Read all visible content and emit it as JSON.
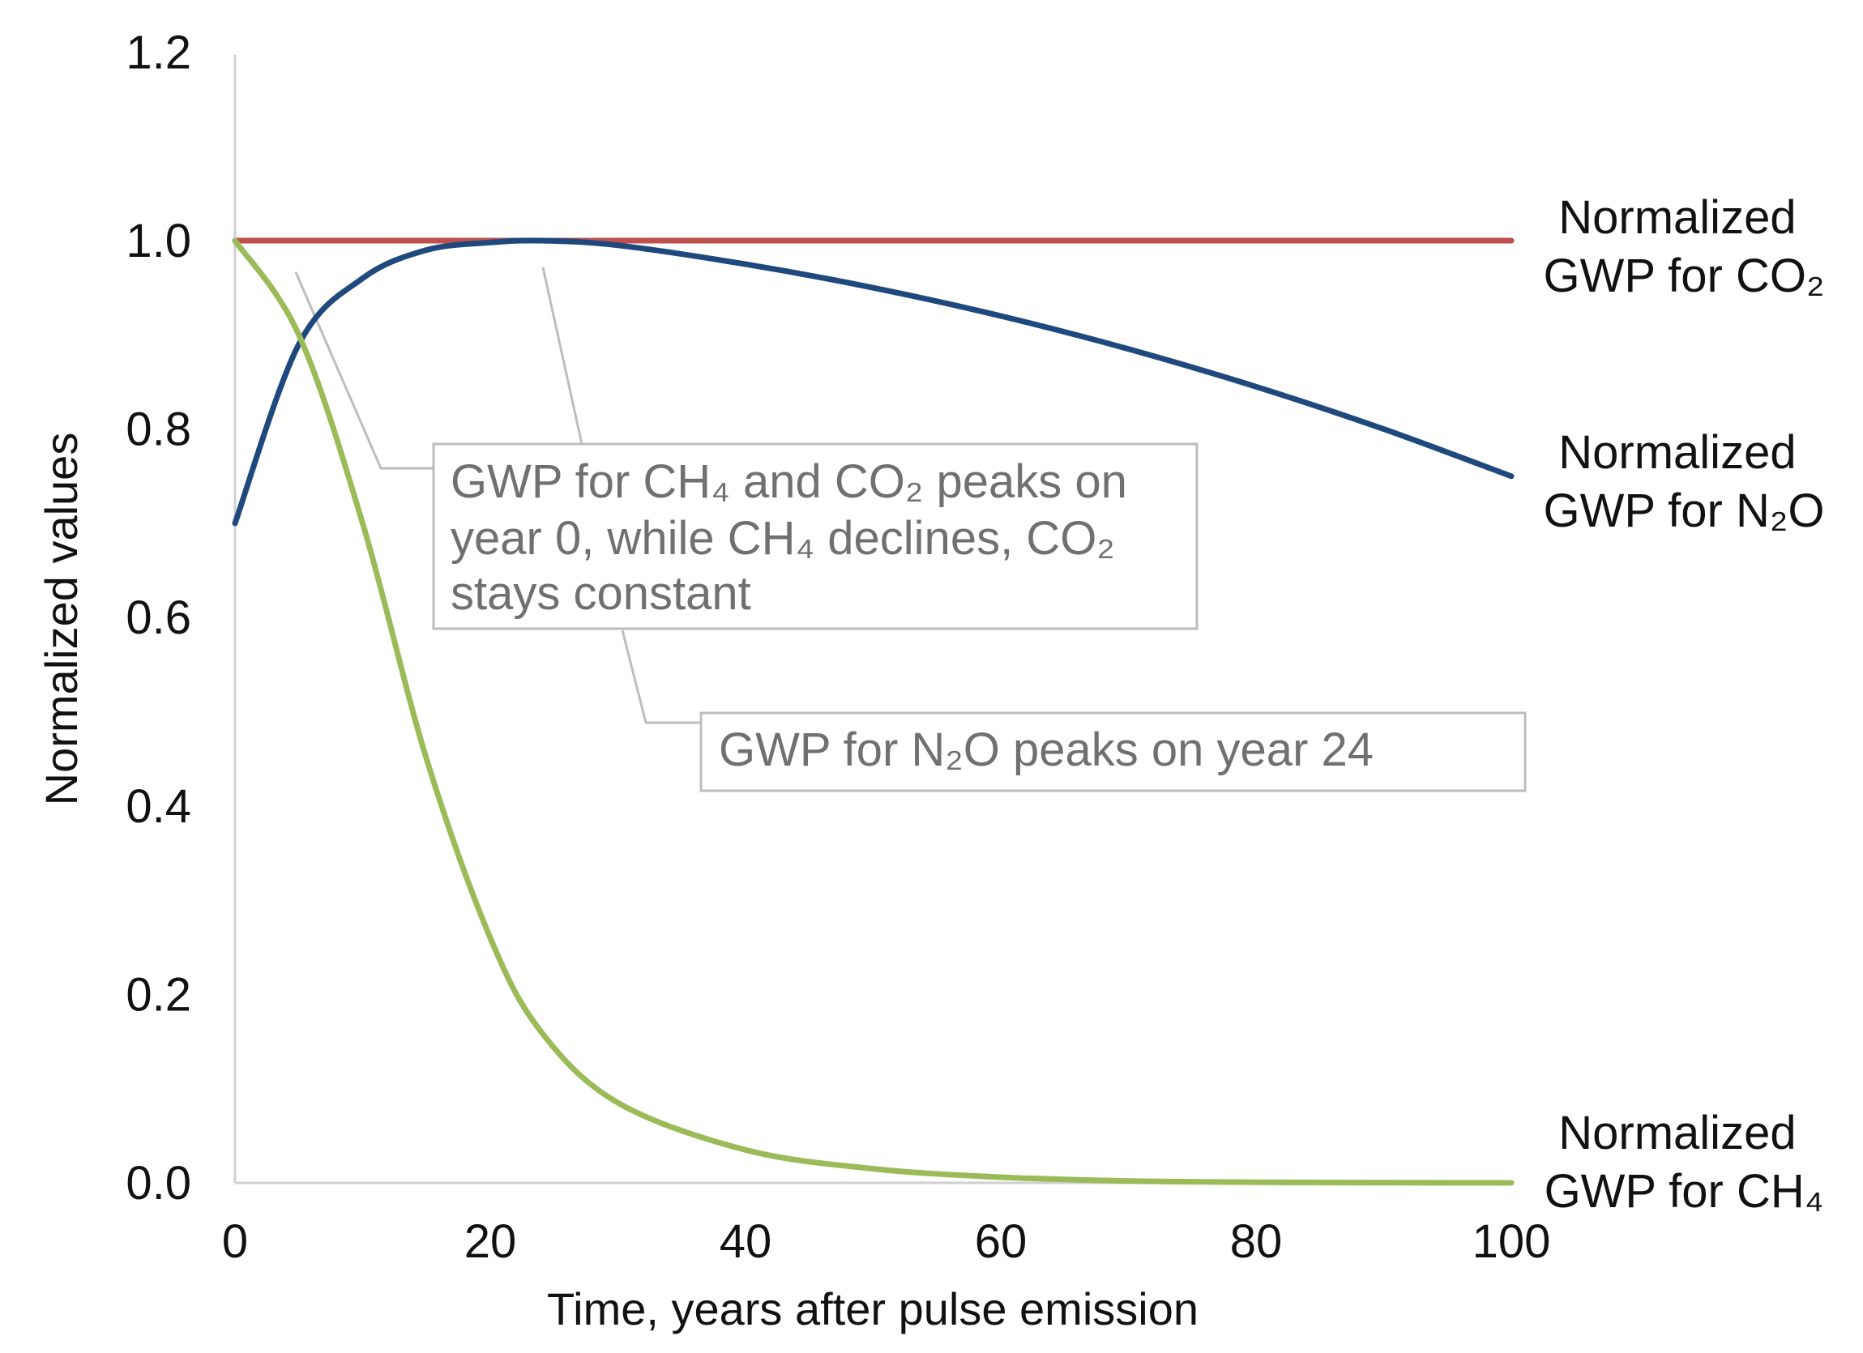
{
  "chart_data": {
    "type": "line",
    "title": "",
    "xlabel": "Time, years after pulse emission",
    "ylabel": "Normalized values",
    "xlim": [
      0,
      100
    ],
    "ylim": [
      0.0,
      1.2
    ],
    "x_ticks": [
      "0",
      "20",
      "40",
      "60",
      "80",
      "100"
    ],
    "y_ticks": [
      "0.0",
      "0.2",
      "0.4",
      "0.6",
      "0.8",
      "1.0",
      "1.2"
    ],
    "grid": false,
    "x": [
      0,
      5,
      10,
      15,
      20,
      24,
      30,
      40,
      50,
      60,
      70,
      80,
      90,
      100
    ],
    "series": [
      {
        "name": "Normalized GWP for CO2",
        "label_lines": [
          "Normalized",
          "GWP for CO₂"
        ],
        "color": "#c0504d",
        "values": [
          1.0,
          1.0,
          1.0,
          1.0,
          1.0,
          1.0,
          1.0,
          1.0,
          1.0,
          1.0,
          1.0,
          1.0,
          1.0,
          1.0
        ]
      },
      {
        "name": "Normalized GWP for N2O",
        "label_lines": [
          "Normalized",
          "GWP for N₂O"
        ],
        "color": "#1f497d",
        "values": [
          0.7,
          0.89,
          0.96,
          0.99,
          0.998,
          1.0,
          0.995,
          0.975,
          0.95,
          0.92,
          0.885,
          0.845,
          0.8,
          0.75
        ]
      },
      {
        "name": "Normalized GWP for CH4",
        "label_lines": [
          "Normalized",
          "GWP for CH₄"
        ],
        "color": "#9bbb59",
        "values": [
          1.0,
          0.9,
          0.7,
          0.45,
          0.26,
          0.16,
          0.085,
          0.035,
          0.015,
          0.006,
          0.002,
          0.0007,
          0.0002,
          0.0
        ]
      }
    ],
    "annotations": [
      {
        "lines": [
          "GWP for CH₄ and CO₂ peaks on",
          "year 0, while CH₄ declines, CO₂",
          "stays constant"
        ]
      },
      {
        "lines": [
          "GWP for N₂O peaks on year 24"
        ]
      }
    ]
  }
}
